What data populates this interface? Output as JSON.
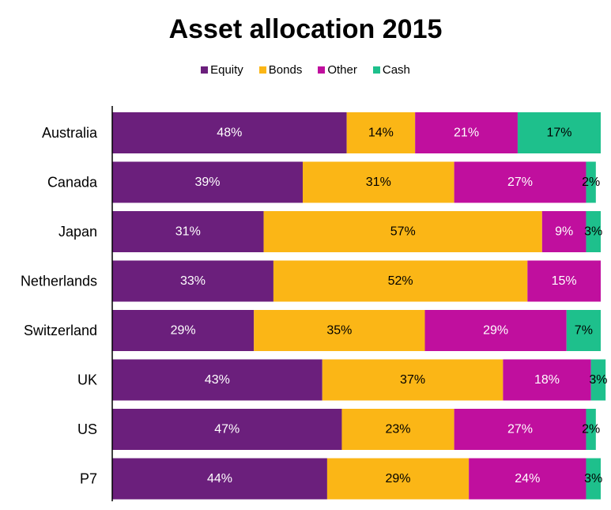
{
  "chart_data": {
    "type": "bar",
    "orientation": "horizontal",
    "stacked": true,
    "percent_stacked": true,
    "title": "Asset allocation 2015",
    "legend_position": "top",
    "grid": false,
    "xlim": [
      0,
      100
    ],
    "categories": [
      "Australia",
      "Canada",
      "Japan",
      "Netherlands",
      "Switzerland",
      "UK",
      "US",
      "P7"
    ],
    "series": [
      {
        "name": "Equity",
        "color": "#6b1f7c",
        "label_color": "#ffffff",
        "values": [
          48,
          39,
          31,
          33,
          29,
          43,
          47,
          44
        ]
      },
      {
        "name": "Bonds",
        "color": "#fbb616",
        "label_color": "#000000",
        "values": [
          14,
          31,
          57,
          52,
          35,
          37,
          23,
          29
        ]
      },
      {
        "name": "Other",
        "color": "#c00f9e",
        "label_color": "#ffffff",
        "values": [
          21,
          27,
          9,
          15,
          29,
          18,
          27,
          24
        ]
      },
      {
        "name": "Cash",
        "color": "#1ec08c",
        "label_color": "#000000",
        "values": [
          17,
          2,
          3,
          0,
          7,
          3,
          2,
          3
        ]
      }
    ]
  }
}
